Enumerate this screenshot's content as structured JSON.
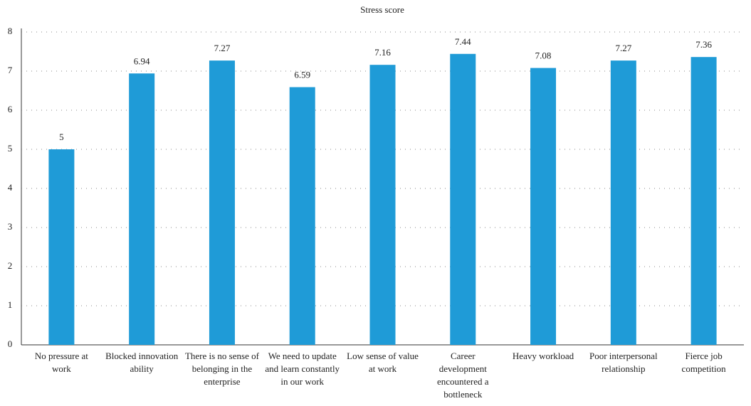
{
  "chart_data": {
    "type": "bar",
    "title": "Stress score",
    "categories": [
      "No pressure at work",
      "Blocked innovation ability",
      "There is no sense of belonging in the enterprise",
      "We need to update and learn constantly in our work",
      "Low sense of value at work",
      "Career development encountered a bottleneck",
      "Heavy workload",
      "Poor interpersonal relationship",
      "Fierce job competition"
    ],
    "values": [
      5,
      6.94,
      7.27,
      6.59,
      7.16,
      7.44,
      7.08,
      7.27,
      7.36
    ],
    "color": "#1f9bd7",
    "ylim": [
      0,
      8
    ],
    "yticks": [
      0,
      1,
      2,
      3,
      4,
      5,
      6,
      7,
      8
    ],
    "grid": true
  }
}
